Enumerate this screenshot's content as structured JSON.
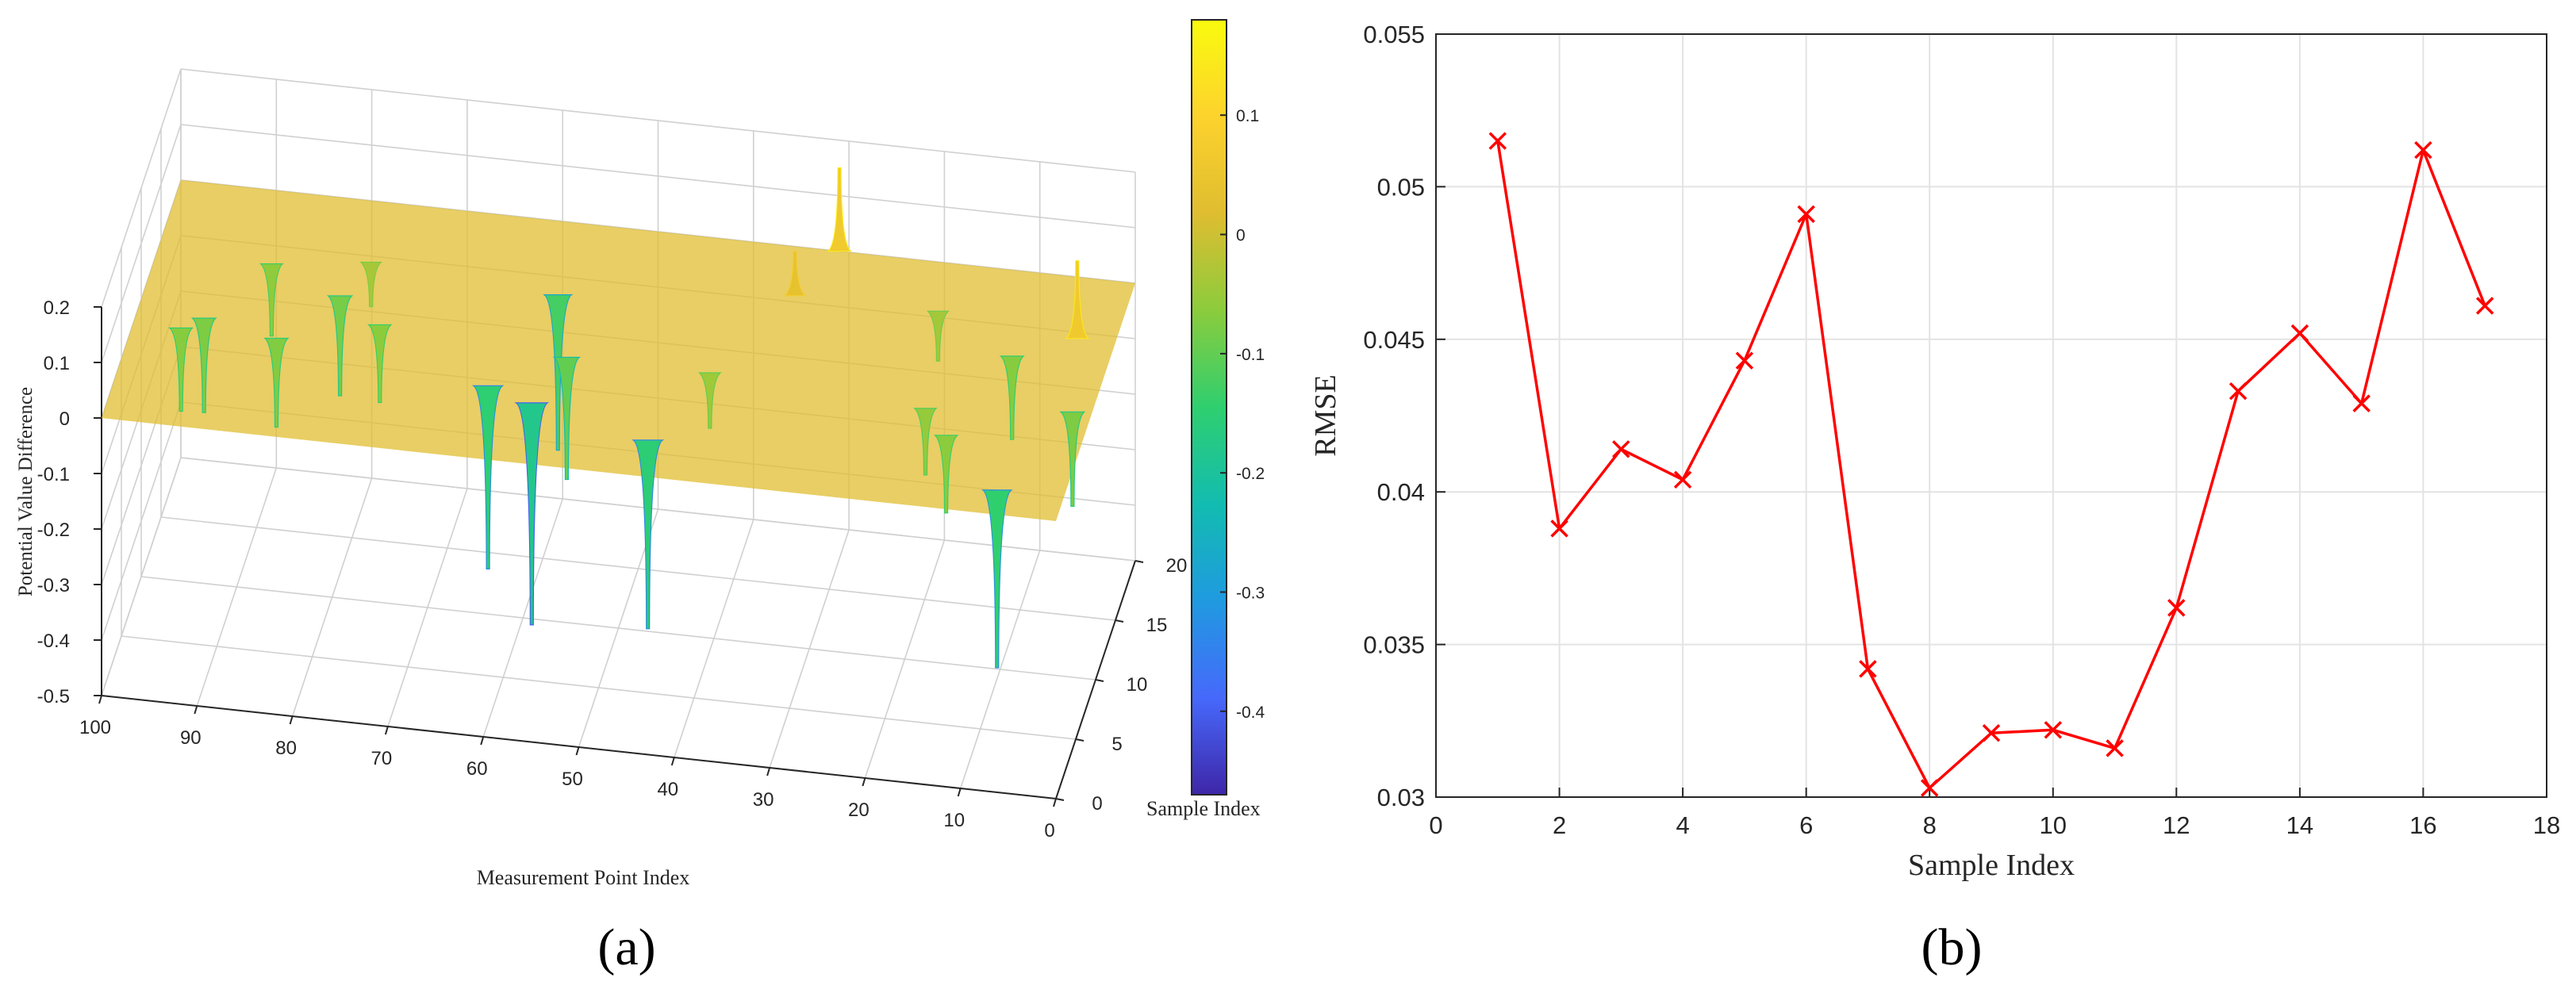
{
  "panel_labels": {
    "a": "(a)",
    "b": "(b)"
  },
  "chart_data": [
    {
      "type": "surface3d",
      "xlabel": "Measurement Point Index",
      "ylabel": "Sample Index",
      "zlabel": "Potential Value Difference",
      "xlim": [
        0,
        100
      ],
      "ylim": [
        0,
        20
      ],
      "zlim": [
        -0.5,
        0.2
      ],
      "x_ticks": [
        "100",
        "90",
        "80",
        "70",
        "60",
        "50",
        "40",
        "30",
        "20",
        "10",
        "0"
      ],
      "y_ticks": [
        "0",
        "5",
        "10",
        "15",
        "20"
      ],
      "z_ticks": [
        "0.2",
        "0.1",
        "0",
        "-0.1",
        "-0.2",
        "-0.3",
        "-0.4",
        "-0.5"
      ],
      "grid": true,
      "surface_baseline": 0.0,
      "features": [
        {
          "x": 95,
          "y": 8,
          "z": -0.15
        },
        {
          "x": 93,
          "y": 9,
          "z": -0.17
        },
        {
          "x": 88,
          "y": 14,
          "z": -0.13
        },
        {
          "x": 85,
          "y": 8,
          "z": -0.16
        },
        {
          "x": 80,
          "y": 12,
          "z": -0.18
        },
        {
          "x": 78,
          "y": 15,
          "z": -0.08
        },
        {
          "x": 75,
          "y": 10,
          "z": -0.14
        },
        {
          "x": 62,
          "y": 6,
          "z": -0.33
        },
        {
          "x": 58,
          "y": 14,
          "z": -0.28
        },
        {
          "x": 57,
          "y": 5,
          "z": -0.4
        },
        {
          "x": 55,
          "y": 9,
          "z": -0.22
        },
        {
          "x": 44,
          "y": 3,
          "z": -0.34
        },
        {
          "x": 40,
          "y": 9,
          "z": -0.1
        },
        {
          "x": 34,
          "y": 16,
          "z": 0.08
        },
        {
          "x": 31,
          "y": 20,
          "z": 0.15
        },
        {
          "x": 19,
          "y": 16,
          "z": -0.09
        },
        {
          "x": 17,
          "y": 8,
          "z": -0.12
        },
        {
          "x": 14,
          "y": 6,
          "z": -0.14
        },
        {
          "x": 10,
          "y": 13,
          "z": -0.15
        },
        {
          "x": 7,
          "y": 2,
          "z": -0.32
        },
        {
          "x": 4,
          "y": 15,
          "z": 0.14
        },
        {
          "x": 2,
          "y": 9,
          "z": -0.17
        }
      ],
      "colorbar": {
        "ticks": [
          "0.1",
          "0",
          "-0.1",
          "-0.2",
          "-0.3",
          "-0.4"
        ],
        "range": [
          -0.47,
          0.18
        ],
        "colormap": [
          "#3e26a8",
          "#4669fb",
          "#1f9ae0",
          "#12bcb0",
          "#2fcf6f",
          "#8bcc3c",
          "#dfbd30",
          "#fdd22d",
          "#f9fb0e"
        ]
      }
    },
    {
      "type": "line",
      "xlabel": "Sample Index",
      "ylabel": "RMSE",
      "xlim": [
        0,
        18
      ],
      "ylim": [
        0.03,
        0.055
      ],
      "x_ticks": [
        "0",
        "2",
        "4",
        "6",
        "8",
        "10",
        "12",
        "14",
        "16",
        "18"
      ],
      "y_ticks": [
        "0.055",
        "0.05",
        "0.045",
        "0.04",
        "0.035",
        "0.03"
      ],
      "grid": true,
      "color": "#ff0000",
      "marker": "x",
      "x": [
        1,
        2,
        3,
        4,
        5,
        6,
        7,
        8,
        9,
        10,
        11,
        12,
        13,
        14,
        15,
        16,
        17
      ],
      "y": [
        0.0515,
        0.0388,
        0.0414,
        0.0404,
        0.0443,
        0.0491,
        0.0342,
        0.0303,
        0.0321,
        0.0322,
        0.0316,
        0.0362,
        0.0433,
        0.0452,
        0.0429,
        0.0512,
        0.0461
      ]
    }
  ]
}
